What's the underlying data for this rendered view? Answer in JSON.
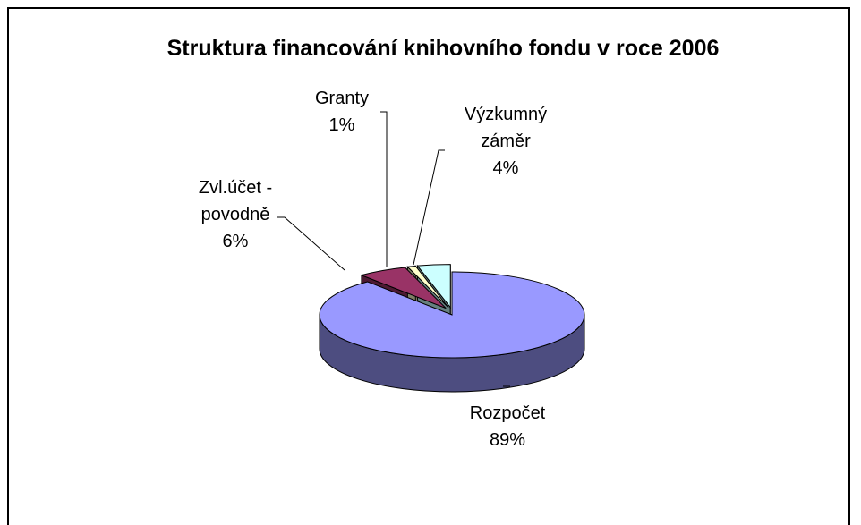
{
  "chart_data": {
    "type": "pie",
    "title": "Struktura financování knihovního fondu v roce 2006",
    "categories": [
      "Rozpočet",
      "Zvl.účet - povodně",
      "Granty",
      "Výzkumný záměr"
    ],
    "values": [
      89,
      6,
      1,
      4
    ],
    "value_labels": [
      "89%",
      "6%",
      "1%",
      "4%"
    ],
    "colors": [
      "#9999ff",
      "#993366",
      "#ffffcc",
      "#ccffff"
    ],
    "side_colors": [
      "#4d4d80",
      "#4d1a33",
      "#808066",
      "#668080"
    ]
  }
}
